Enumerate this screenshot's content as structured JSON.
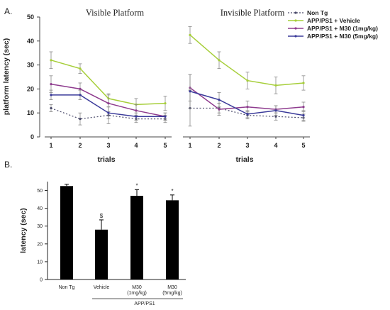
{
  "figure": {
    "panel_a_label": "A.",
    "panel_b_label": "B."
  },
  "chart_data": [
    {
      "type": "line",
      "panel": "A",
      "ylabel": "platform latency (sec)",
      "ylim": [
        0,
        50
      ],
      "yticks": [
        "0",
        "10",
        "20",
        "30",
        "40",
        "50"
      ],
      "legend": [
        {
          "name": "Non Tg",
          "color": "#4a4a6a",
          "style": "dotted"
        },
        {
          "name": "APP/PS1 + Vehicle",
          "color": "#a6ce39",
          "style": "solid"
        },
        {
          "name": "APP/PS1 + M30 (1mg/kg)",
          "color": "#8e3b8e",
          "style": "solid"
        },
        {
          "name": "APP/PS1 + M30 (5mg/kg)",
          "color": "#3a3a9a",
          "style": "solid"
        }
      ],
      "subplots": [
        {
          "title": "Visible Platform",
          "xlabel": "trials",
          "x": [
            "1",
            "2",
            "3",
            "4",
            "5"
          ],
          "series": [
            {
              "name": "Non Tg",
              "values": [
                12,
                7.5,
                9,
                7.5,
                7.5
              ],
              "errors": [
                1.5,
                2.5,
                3.5,
                1.5,
                1.5
              ]
            },
            {
              "name": "APP/PS1 + Vehicle",
              "values": [
                32,
                28.5,
                16,
                13.5,
                14
              ],
              "errors": [
                3.5,
                2,
                2,
                2.5,
                3
              ]
            },
            {
              "name": "APP/PS1 + M30 (1mg/kg)",
              "values": [
                22,
                20,
                14,
                11,
                8.5
              ],
              "errors": [
                3.5,
                2.5,
                3.5,
                2.5,
                1.5
              ]
            },
            {
              "name": "APP/PS1 + M30 (5mg/kg)",
              "values": [
                17.5,
                17.5,
                10,
                8.5,
                8.5
              ],
              "errors": [
                2,
                2,
                2.5,
                1.5,
                1.5
              ]
            }
          ]
        },
        {
          "title": "Invisible Platform",
          "xlabel": "trials",
          "x": [
            "1",
            "2",
            "3",
            "4",
            "5"
          ],
          "series": [
            {
              "name": "Non Tg",
              "values": [
                12,
                12,
                9,
                8.5,
                8
              ],
              "errors": [
                7.5,
                2,
                1.5,
                1.5,
                1.5
              ]
            },
            {
              "name": "APP/PS1 + Vehicle",
              "values": [
                42.5,
                32,
                23.5,
                21.5,
                22.5
              ],
              "errors": [
                3.5,
                3.5,
                3.5,
                3.5,
                3
              ]
            },
            {
              "name": "APP/PS1 + M30 (1mg/kg)",
              "values": [
                20.5,
                11.5,
                12.5,
                11.5,
                12.5
              ],
              "errors": [
                5.5,
                2.5,
                2.5,
                1.5,
                2
              ]
            },
            {
              "name": "APP/PS1 + M30 (5mg/kg)",
              "values": [
                19,
                15.5,
                9.5,
                11,
                9
              ],
              "errors": [
                7,
                3,
                1.5,
                2,
                2
              ]
            }
          ]
        }
      ]
    },
    {
      "type": "bar",
      "panel": "B",
      "ylabel": "latency (sec)",
      "ylim": [
        0,
        55
      ],
      "yticks": [
        "0",
        "10",
        "20",
        "30",
        "40",
        "50"
      ],
      "categories": [
        "Non Tg",
        "Vehicle",
        "M30 (1mg/kg)",
        "M30 (5mg/kg)"
      ],
      "category_lines": [
        [
          "Non Tg"
        ],
        [
          "Vehicle"
        ],
        [
          "M30",
          "(1mg/kg)"
        ],
        [
          "M30",
          "(5mg/kg)"
        ]
      ],
      "values": [
        52.5,
        28,
        47,
        44.5
      ],
      "errors": [
        1,
        5.5,
        3.5,
        3
      ],
      "markers": [
        "",
        "$",
        "*",
        "*"
      ],
      "group_label": "APP/PS1",
      "bar_color": "#000000"
    }
  ]
}
